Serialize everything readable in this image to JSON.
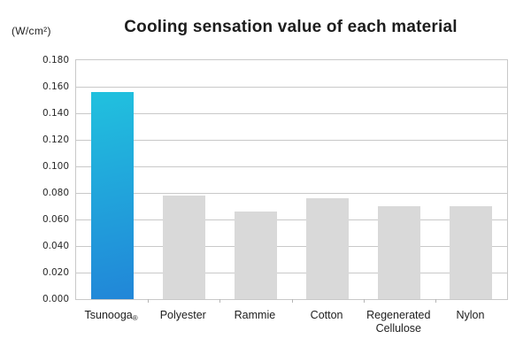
{
  "header": {
    "title": "Cooling sensation value of each material",
    "unit_label": "(W/cm²)"
  },
  "chart_data": {
    "type": "bar",
    "title": "Cooling sensation value of each material",
    "ylabel": "(W/cm²)",
    "xlabel": "",
    "categories": [
      "Tsunooga®",
      "Polyester",
      "Rammie",
      "Cotton",
      "Regenerated Cellulose",
      "Nylon"
    ],
    "values": [
      0.156,
      0.078,
      0.066,
      0.076,
      0.07,
      0.07
    ],
    "ylim": [
      0.0,
      0.18
    ],
    "yticks": [
      0.0,
      0.02,
      0.04,
      0.06,
      0.08,
      0.1,
      0.12,
      0.14,
      0.16,
      0.18
    ],
    "ytick_decimals": 3,
    "grid": true,
    "legend": false,
    "highlight_index": 0,
    "colors": {
      "highlight_bar_top": "#21c1de",
      "highlight_bar_bottom": "#2186d8",
      "default_bar": "#d9d9d9",
      "gridline": "#c9c9c9",
      "boundary_tick": "#b5b5b5",
      "title_text": "#1d1d1d",
      "axis_text": "#2a2a2a"
    }
  }
}
